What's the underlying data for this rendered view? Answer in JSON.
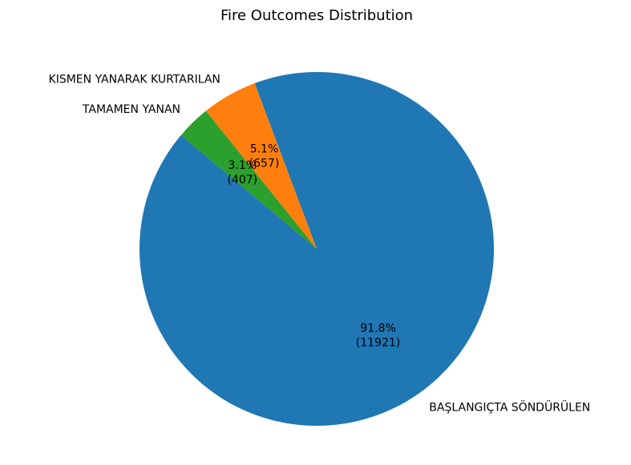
{
  "chart_data": {
    "type": "pie",
    "title": "Fire Outcomes Distribution",
    "slices": [
      {
        "label": "BAŞLANGIÇTA SÖNDÜRÜLEN",
        "value": 11921,
        "percent": "91.8%",
        "count": "(11921)",
        "color": "#1f77b4"
      },
      {
        "label": "KISMEN YANARAK KURTARILAN",
        "value": 657,
        "percent": "5.1%",
        "count": "(657)",
        "color": "#ff7f0e"
      },
      {
        "label": "TAMAMEN YANAN",
        "value": 407,
        "percent": "3.1%",
        "count": "(407)",
        "color": "#2ca02c"
      }
    ]
  }
}
